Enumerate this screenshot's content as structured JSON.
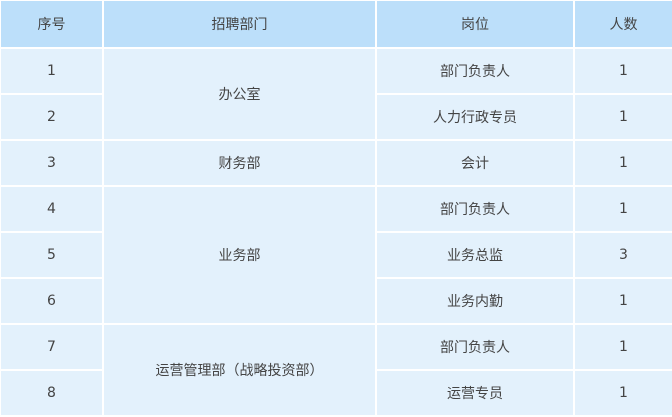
{
  "header": {
    "index": "序号",
    "department": "招聘部门",
    "position": "岗位",
    "count": "人数"
  },
  "rows": [
    {
      "index": "1",
      "department": "办公室",
      "position": "部门负责人",
      "count": "1"
    },
    {
      "index": "2",
      "position": "人力行政专员",
      "count": "1"
    },
    {
      "index": "3",
      "department": "财务部",
      "position": "会计",
      "count": "1"
    },
    {
      "index": "4",
      "department": "业务部",
      "position": "部门负责人",
      "count": "1"
    },
    {
      "index": "5",
      "position": "业务总监",
      "count": "3"
    },
    {
      "index": "6",
      "position": "业务内勤",
      "count": "1"
    },
    {
      "index": "7",
      "department": "运营管理部（战略投资部）",
      "position": "部门负责人",
      "count": "1"
    },
    {
      "index": "8",
      "position": "运营专员",
      "count": "1"
    }
  ],
  "colors": {
    "header_bg": "#bcdffa",
    "body_bg": "#e3f1fc",
    "text": "#444444"
  }
}
